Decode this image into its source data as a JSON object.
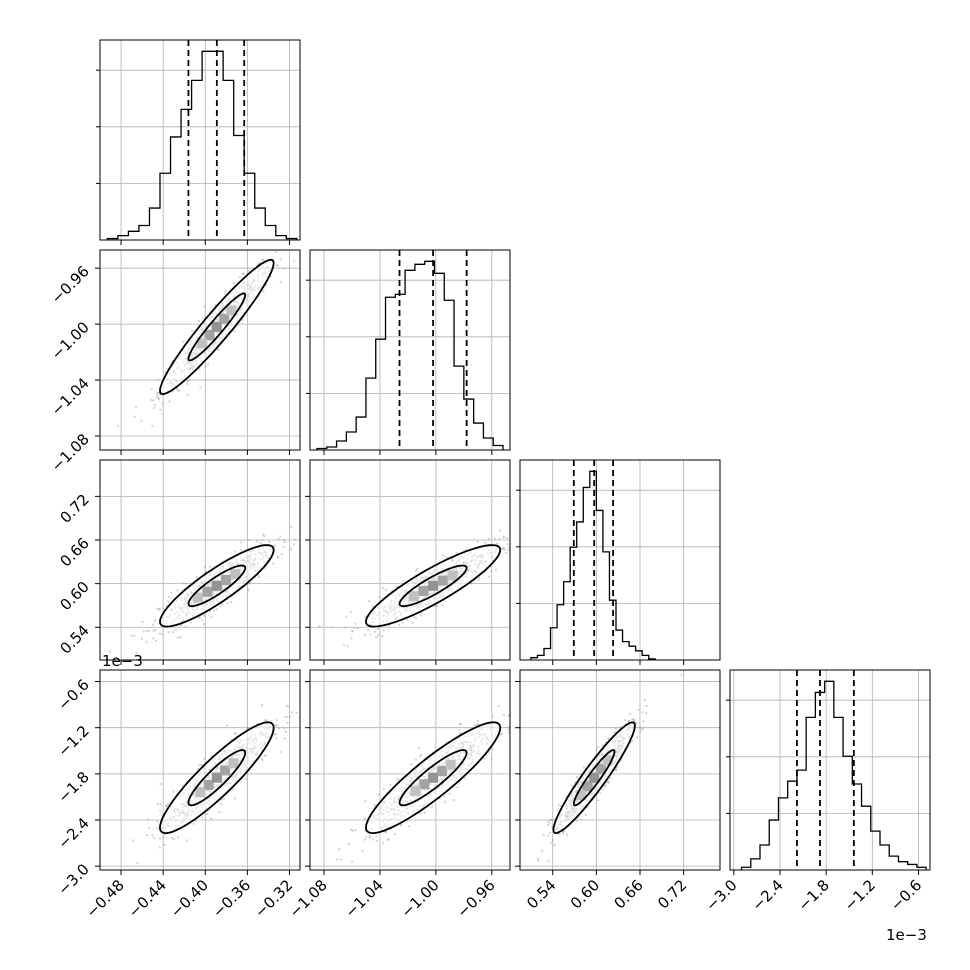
{
  "chart_data": {
    "type": "corner",
    "parameters": 4,
    "axes": [
      {
        "range": [
          -0.5,
          -0.31
        ],
        "ticks": [
          -0.48,
          -0.44,
          -0.4,
          -0.36,
          -0.32
        ],
        "tick_labels": [
          "−0.48",
          "−0.44",
          "−0.40",
          "−0.36",
          "−0.32"
        ],
        "offset": ""
      },
      {
        "range": [
          -1.09,
          -0.947
        ],
        "ticks": [
          -1.08,
          -1.04,
          -1.0,
          -0.96
        ],
        "tick_labels": [
          "−1.08",
          "−1.04",
          "−1.00",
          "−0.96"
        ],
        "offset": ""
      },
      {
        "range": [
          0.495,
          0.77
        ],
        "ticks": [
          0.54,
          0.6,
          0.66,
          0.72
        ],
        "tick_labels": [
          "0.54",
          "0.60",
          "0.66",
          "0.72"
        ],
        "offset": ""
      },
      {
        "range": [
          -3.05,
          -0.45
        ],
        "ticks": [
          -3.0,
          -2.4,
          -1.8,
          -1.2,
          -0.6
        ],
        "tick_labels": [
          "−3.0",
          "−2.4",
          "−1.8",
          "−1.2",
          "−0.6"
        ],
        "offset": "1e−3"
      }
    ],
    "histograms": [
      {
        "quantiles": [
          -0.416,
          -0.389,
          -0.363
        ],
        "bin_edges": [
          -0.493,
          -0.483,
          -0.473,
          -0.463,
          -0.453,
          -0.443,
          -0.433,
          -0.423,
          -0.413,
          -0.403,
          -0.393,
          -0.383,
          -0.373,
          -0.363,
          -0.353,
          -0.343,
          -0.333,
          -0.323,
          -0.313
        ],
        "counts": [
          1,
          3,
          6,
          10,
          22,
          46,
          71,
          90,
          110,
          130,
          130,
          110,
          72,
          46,
          22,
          10,
          3,
          1
        ]
      },
      {
        "quantiles": [
          -1.026,
          -1.002,
          -0.978
        ],
        "bin_edges": [
          -1.085,
          -1.078,
          -1.071,
          -1.064,
          -1.057,
          -1.05,
          -1.043,
          -1.036,
          -1.029,
          -1.022,
          -1.015,
          -1.008,
          -1.001,
          -0.994,
          -0.987,
          -0.98,
          -0.973,
          -0.966,
          -0.959,
          -0.952
        ],
        "counts": [
          1,
          2,
          6,
          12,
          22,
          48,
          74,
          102,
          104,
          120,
          124,
          126,
          118,
          100,
          56,
          34,
          18,
          8,
          3
        ]
      },
      {
        "quantiles": [
          0.569,
          0.597,
          0.623
        ],
        "bin_edges": [
          0.51,
          0.519,
          0.528,
          0.537,
          0.546,
          0.555,
          0.564,
          0.573,
          0.582,
          0.591,
          0.6,
          0.609,
          0.618,
          0.627,
          0.636,
          0.645,
          0.654,
          0.663,
          0.672,
          0.681
        ],
        "counts": [
          2,
          4,
          10,
          28,
          48,
          68,
          98,
          120,
          150,
          164,
          130,
          94,
          52,
          26,
          16,
          12,
          8,
          4,
          1
        ]
      },
      {
        "quantiles": [
          -2.18,
          -1.88,
          -1.44
        ],
        "bin_edges": [
          -2.9,
          -2.78,
          -2.66,
          -2.54,
          -2.42,
          -2.3,
          -2.18,
          -2.06,
          -1.94,
          -1.82,
          -1.7,
          -1.58,
          -1.46,
          -1.34,
          -1.22,
          -1.1,
          -0.98,
          -0.86,
          -0.74,
          -0.62,
          -0.5
        ],
        "counts": [
          2,
          8,
          18,
          36,
          52,
          64,
          72,
          110,
          128,
          136,
          110,
          82,
          62,
          46,
          28,
          18,
          10,
          6,
          4,
          2
        ]
      }
    ],
    "correlations": [
      {
        "x": 0,
        "y": 1,
        "rho": 0.95
      },
      {
        "x": 0,
        "y": 2,
        "rho": 0.88
      },
      {
        "x": 1,
        "y": 2,
        "rho": 0.88
      },
      {
        "x": 0,
        "y": 3,
        "rho": 0.9
      },
      {
        "x": 1,
        "y": 3,
        "rho": 0.9
      },
      {
        "x": 2,
        "y": 3,
        "rho": 0.94
      }
    ],
    "means": [
      -0.389,
      -1.002,
      0.597,
      -1.85
    ],
    "stds": [
      0.027,
      0.024,
      0.028,
      0.36
    ],
    "contour_levels_sigma": [
      1,
      2
    ],
    "grid": true,
    "colors": {
      "axis": "#000000",
      "grid": "#b0b0b0",
      "points": "#9a9a9a",
      "contour": "#000000",
      "quantile_line": "#000000"
    }
  }
}
